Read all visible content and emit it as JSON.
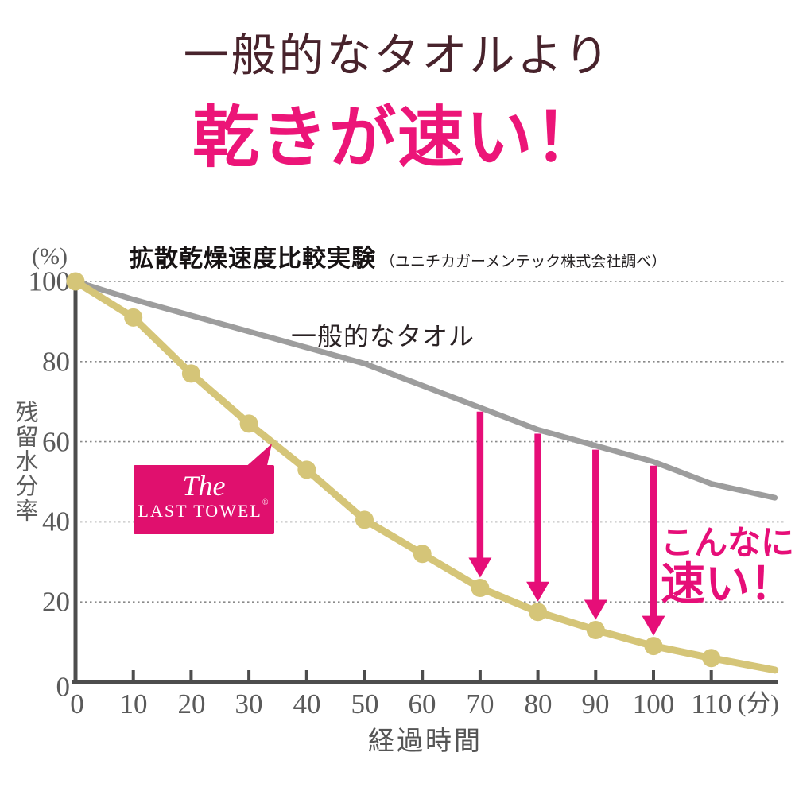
{
  "header": {
    "line1": "一般的なタオルより",
    "line2": "乾きが速い！",
    "line1_color": "#48232c",
    "accent_color": "#ec1578"
  },
  "chart_data": {
    "type": "line",
    "title": "拡散乾燥速度比較実験",
    "title_note": "（ユニチカガーメンテック株式会社調べ）",
    "xlabel": "経過時間",
    "x_unit_label": "(分)",
    "ylabel": "残留水分率",
    "y_unit_label": "(%)",
    "grid": "horizontal dotted",
    "legend_position": "inline labels on lines",
    "ylim": [
      0,
      100
    ],
    "x_ticks": [
      0,
      10,
      20,
      30,
      40,
      50,
      60,
      70,
      80,
      90,
      100,
      110
    ],
    "x_tick_labels": [
      "0",
      "10",
      "20",
      "30",
      "40",
      "50",
      "60",
      "70",
      "80",
      "90",
      "100",
      "110"
    ],
    "y_ticks": [
      0,
      20,
      40,
      60,
      80,
      100
    ],
    "y_tick_labels_top_to_bottom": [
      "100",
      "80",
      "60",
      "40",
      "20",
      "0"
    ],
    "axis_color": "#4d4d4d",
    "series": [
      {
        "name": "一般的なタオル",
        "color": "#9d9d9d",
        "line_width": 7,
        "markers": false,
        "x": [
          0,
          10,
          20,
          30,
          40,
          50,
          60,
          70,
          80,
          90,
          100,
          110,
          121
        ],
        "values": [
          100,
          95.5,
          91.5,
          87.5,
          83.5,
          79.5,
          74,
          68.5,
          63,
          59,
          55,
          49.5,
          46
        ]
      },
      {
        "name": "The LAST TOWEL",
        "color": "#d5c578",
        "line_width": 9,
        "markers": true,
        "marker_radius": 11.5,
        "x": [
          0,
          10,
          20,
          30,
          40,
          50,
          60,
          70,
          80,
          90,
          100,
          110,
          121
        ],
        "values": [
          100,
          91,
          77,
          64.5,
          53,
          40.5,
          32,
          23.5,
          17.5,
          13,
          9,
          6,
          3
        ]
      }
    ],
    "gap_arrows_x": [
      70,
      80,
      90,
      100
    ],
    "arrow_color": "#e60e78"
  },
  "brand_label": {
    "the": "The",
    "name": "LAST TOWEL",
    "reg": "®",
    "bg": "#e0106e"
  },
  "annotation": {
    "line1": "こんなに",
    "line2": "速い！",
    "color": "#e60e78"
  }
}
